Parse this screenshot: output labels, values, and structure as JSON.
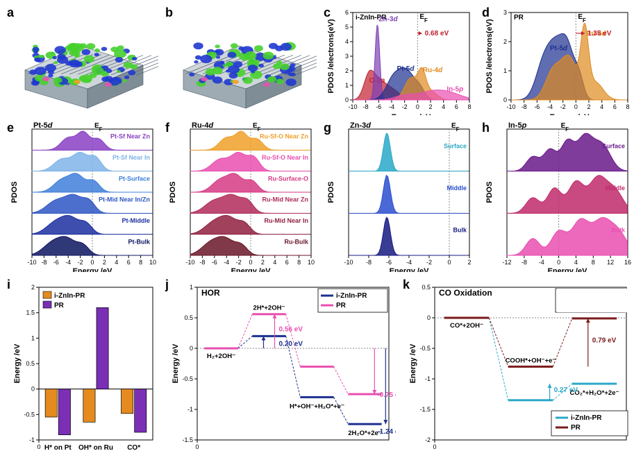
{
  "figure": {
    "background_color": "#ffffff",
    "panels": {
      "a": {
        "label": "a",
        "type": "3d-render",
        "title_fontsize": 18
      },
      "b": {
        "label": "b",
        "type": "3d-render",
        "title_fontsize": 18
      },
      "c": {
        "label": "c",
        "type": "pdos",
        "xlabel": "Energy /eV",
        "ylabel": "PDOS /electrons(eV)",
        "xlim": [
          -10,
          8
        ],
        "xtick_step": 2,
        "ylim": [
          0,
          6
        ],
        "ytick_step": 1,
        "corner_label": "i-ZnIn-PR",
        "ef_label": "E_F",
        "annotation": {
          "text": "0.68 eV",
          "color": "#c01f2e"
        },
        "series": [
          {
            "name": "O-2p",
            "color": "#c01f2e",
            "label_pos": [
              -7.5,
              1.2
            ]
          },
          {
            "name": "Zn-3d",
            "color": "#7e3fb5",
            "label_pos": [
              -6,
              5.4
            ]
          },
          {
            "name": "Pt-5d",
            "color": "#1d2f8f",
            "label_pos": [
              -3.2,
              2.0
            ]
          },
          {
            "name": "Ru-4d",
            "color": "#e08a1e",
            "label_pos": [
              0.8,
              1.9
            ]
          },
          {
            "name": "In-5p",
            "color": "#e94fb0",
            "label_pos": [
              4.5,
              0.6
            ]
          }
        ]
      },
      "d": {
        "label": "d",
        "type": "pdos",
        "xlabel": "Energy /eV",
        "ylabel": "PDOS /electrons(eV)",
        "xlim": [
          -10,
          8
        ],
        "xtick_step": 2,
        "ylim": [
          0,
          3
        ],
        "ytick_step": 1,
        "corner_label": "PR",
        "ef_label": "E_F",
        "annotation": {
          "text": "1.35 eV",
          "color": "#c01f2e"
        },
        "series": [
          {
            "name": "Pt-5d",
            "color": "#1d2f8f",
            "label_pos": [
              -4.0,
              1.7
            ]
          },
          {
            "name": "Ru-4d",
            "color": "#e08a1e",
            "label_pos": [
              1.6,
              2.2
            ]
          }
        ]
      },
      "e": {
        "label": "e",
        "type": "stacked-pdos",
        "axis_title": "Pt-5d",
        "xlabel": "Energy /eV",
        "ylabel": "PDOS",
        "xlim": [
          -10,
          10
        ],
        "xtick_step": 2,
        "rows": [
          {
            "label": "Pt-Sf Near Zn",
            "color": "#8a3fc4"
          },
          {
            "label": "Pt-Sf Near In",
            "color": "#7fb4e8"
          },
          {
            "label": "Pt-Surface",
            "color": "#3f7fd9"
          },
          {
            "label": "Pt-Mid Near In/Zn",
            "color": "#2d56c4"
          },
          {
            "label": "Pt-Middle",
            "color": "#1c2fa0"
          },
          {
            "label": "Pt-Bulk",
            "color": "#0d1560"
          }
        ]
      },
      "f": {
        "label": "f",
        "type": "stacked-pdos",
        "axis_title": "Ru-4d",
        "xlabel": "Energy /eV",
        "ylabel": "PDOS",
        "xlim": [
          -10,
          10
        ],
        "xtick_step": 2,
        "rows": [
          {
            "label": "Ru-Sf-O Near Zn",
            "color": "#f0a028"
          },
          {
            "label": "Ru-Sf-O Near In",
            "color": "#e94fb0"
          },
          {
            "label": "Ru-Surface-O",
            "color": "#d63a84"
          },
          {
            "label": "Ru-Mid Near Zn",
            "color": "#b02a5a"
          },
          {
            "label": "Ru-Mid Near In",
            "color": "#902040"
          },
          {
            "label": "Ru-Bulk",
            "color": "#6a1628"
          }
        ]
      },
      "g": {
        "label": "g",
        "type": "stacked-pdos",
        "axis_title": "Zn-3d",
        "xlabel": "Energy /eV",
        "ylabel": "PDOS",
        "xlim": [
          -10,
          2
        ],
        "xtick_step": 2,
        "rows": [
          {
            "label": "Surface",
            "color": "#2aa8c8"
          },
          {
            "label": "Middle",
            "color": "#2a4fd0"
          },
          {
            "label": "Bulk",
            "color": "#161a80"
          }
        ]
      },
      "h": {
        "label": "h",
        "type": "stacked-pdos",
        "axis_title": "In-5p",
        "xlabel": "Energy /eV",
        "ylabel": "PDOS",
        "xlim": [
          -12,
          16
        ],
        "xtick_step": 4,
        "rows": [
          {
            "label": "Surface",
            "color": "#6a1a8a"
          },
          {
            "label": "Middle",
            "color": "#c02a6a"
          },
          {
            "label": "Bulk",
            "color": "#e94fb0"
          }
        ]
      },
      "i": {
        "label": "i",
        "type": "bar",
        "xlabel": "",
        "ylabel": "Energy /eV",
        "ylim": [
          -1.0,
          2.0
        ],
        "ytick_step": 0.5,
        "categories": [
          "H* on Pt",
          "OH* on Ru",
          "CO*"
        ],
        "series": [
          {
            "name": "i-ZnIn-PR",
            "color": "#e58a1e",
            "values": [
              -0.55,
              -0.65,
              -0.48
            ]
          },
          {
            "name": "PR",
            "color": "#7a2fb5",
            "values": [
              -0.9,
              1.6,
              -0.85
            ]
          }
        ],
        "bar_width": 0.35
      },
      "j": {
        "label": "j",
        "type": "free-energy",
        "title": "HOR",
        "xlabel": "",
        "ylabel": "Energy /eV",
        "ylim": [
          -1.5,
          1.0
        ],
        "ytick_step": 0.5,
        "legend": [
          {
            "name": "i-ZnIn-PR",
            "color": "#1d2f8f"
          },
          {
            "name": "PR",
            "color": "#e94fb0"
          }
        ],
        "step_labels": [
          "H₂+2OH⁻",
          "2H*+2OH⁻",
          "H*+OH⁻+H₂O*+e⁻",
          "2H₂O*+2e⁻"
        ],
        "path1": {
          "color": "#1d2f8f",
          "levels": [
            0.0,
            0.2,
            -0.8,
            -1.24
          ]
        },
        "path2": {
          "color": "#e94fb0",
          "levels": [
            0.0,
            0.56,
            -0.3,
            -0.75
          ]
        },
        "annotations": [
          {
            "text": "0.56 eV",
            "color": "#e94fb0"
          },
          {
            "text": "0.20 eV",
            "color": "#1d2f8f"
          },
          {
            "text": "-0.75 eV",
            "color": "#e94fb0"
          },
          {
            "text": "-1.24 eV",
            "color": "#1d2f8f"
          }
        ]
      },
      "k": {
        "label": "k",
        "type": "free-energy",
        "title": "CO Oxidation",
        "xlabel": "",
        "ylabel": "Energy /eV",
        "ylim": [
          -2.0,
          0.5
        ],
        "ytick_step": 0.5,
        "legend": [
          {
            "name": "i-ZnIn-PR",
            "color": "#2aa8c8"
          },
          {
            "name": "PR",
            "color": "#7a1a1a"
          }
        ],
        "step_labels": [
          "CO*+2OH⁻",
          "COOH*+OH⁻+e⁻",
          "CO₂*+H₂O*+2e⁻"
        ],
        "path1": {
          "color": "#2aa8c8",
          "levels": [
            0.0,
            -1.35,
            -1.08
          ]
        },
        "path2": {
          "color": "#7a1a1a",
          "levels": [
            0.0,
            -0.8,
            -0.01
          ]
        },
        "annotations": [
          {
            "text": "0.27 eV",
            "color": "#2aa8c8"
          },
          {
            "text": "0.79 eV",
            "color": "#7a1a1a"
          }
        ]
      }
    }
  }
}
